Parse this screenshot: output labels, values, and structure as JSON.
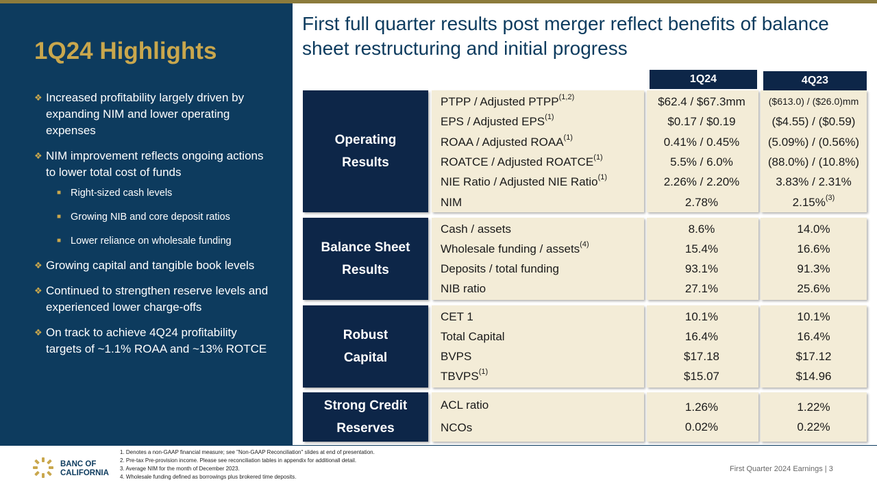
{
  "sidebar": {
    "title": "1Q24 Highlights",
    "bullets": [
      "Increased profitability largely driven by expanding NIM and lower operating expenses",
      "NIM improvement reflects ongoing actions to lower total cost of funds"
    ],
    "sub_bullets": [
      "Right-sized  cash levels",
      "Growing  NIB and core deposit ratios",
      "Lower  reliance  on wholesale  funding"
    ],
    "bullets_after": [
      "Growing capital and tangible book levels",
      "Continued to strengthen reserve levels and experienced lower charge-offs",
      "On track to achieve 4Q24 profitability targets of ~1.1% ROAA and ~13% ROTCE"
    ]
  },
  "main_title": "First full quarter results post merger reflect benefits of balance sheet restructuring and initial progress",
  "columns": {
    "col1": "1Q24",
    "col2": "4Q23"
  },
  "sections": {
    "operating": {
      "title": "Operating Results",
      "rows": [
        {
          "label": "PTPP / Adjusted PTPP",
          "sup": "(1,2)",
          "v1": "$62.4 / $67.3mm",
          "v2": "($613.0) / ($26.0)mm"
        },
        {
          "label": "EPS / Adjusted EPS",
          "sup": "(1)",
          "v1": "$0.17 / $0.19",
          "v2": "($4.55) / ($0.59)"
        },
        {
          "label": "ROAA / Adjusted ROAA",
          "sup": "(1)",
          "v1": "0.41% / 0.45%",
          "v2": "(5.09%) / (0.56%)"
        },
        {
          "label": "ROATCE / Adjusted ROATCE",
          "sup": "(1)",
          "v1": "5.5% / 6.0%",
          "v2": "(88.0%) / (10.8%)"
        },
        {
          "label": "NIE Ratio / Adjusted NIE Ratio",
          "sup": "(1)",
          "v1": "2.26% / 2.20%",
          "v2": "3.83% / 2.31%"
        },
        {
          "label": "NIM",
          "sup": "",
          "v1": "2.78%",
          "v2": "2.15%",
          "v2_sup": "(3)"
        }
      ]
    },
    "balance": {
      "title": "Balance Sheet Results",
      "rows": [
        {
          "label": "Cash / assets",
          "sup": "",
          "v1": "8.6%",
          "v2": "14.0%"
        },
        {
          "label": "Wholesale funding / assets",
          "sup": "(4)",
          "v1": "15.4%",
          "v2": "16.6%"
        },
        {
          "label": "Deposits / total funding",
          "sup": "",
          "v1": "93.1%",
          "v2": "91.3%"
        },
        {
          "label": "NIB ratio",
          "sup": "",
          "v1": "27.1%",
          "v2": "25.6%"
        }
      ]
    },
    "capital": {
      "title": "Robust Capital",
      "rows": [
        {
          "label": "CET 1",
          "sup": "",
          "v1": "10.1%",
          "v2": "10.1%"
        },
        {
          "label": "Total Capital",
          "sup": "",
          "v1": "16.4%",
          "v2": "16.4%"
        },
        {
          "label": "BVPS",
          "sup": "",
          "v1": "$17.18",
          "v2": "$17.12"
        },
        {
          "label": "TBVPS",
          "sup": "(1)",
          "v1": "$15.07",
          "v2": "$14.96"
        }
      ]
    },
    "credit": {
      "title": "Strong Credit Reserves",
      "rows": [
        {
          "label": "ACL ratio",
          "sup": "",
          "v1": "1.26%",
          "v2": "1.22%"
        },
        {
          "label": "NCOs",
          "sup": "",
          "v1": "0.02%",
          "v2": "0.22%"
        }
      ]
    }
  },
  "footnotes": [
    "1.  Denotes a non-GAAP  financial measure;  see \"Non-GAAP  Reconciliation\" slides at end  of presentation.",
    "2.  Pre-tax Pre-provision income.  Please see reconciliation tables in appendix  for additionall detail.",
    "3.  Average NIM  for the month of December 2023.",
    "4.  Wholesale funding defined as borrowings  plus brokered time deposits."
  ],
  "logo": {
    "line1": "BANC OF",
    "line2": "CALIFORNIA"
  },
  "footer": {
    "text": "First Quarter 2024 Earnings |",
    "page": "3"
  },
  "colors": {
    "navy": "#0d3b5e",
    "dark_navy": "#0d2648",
    "gold": "#c9a74d",
    "cream": "#f3ecd7"
  }
}
